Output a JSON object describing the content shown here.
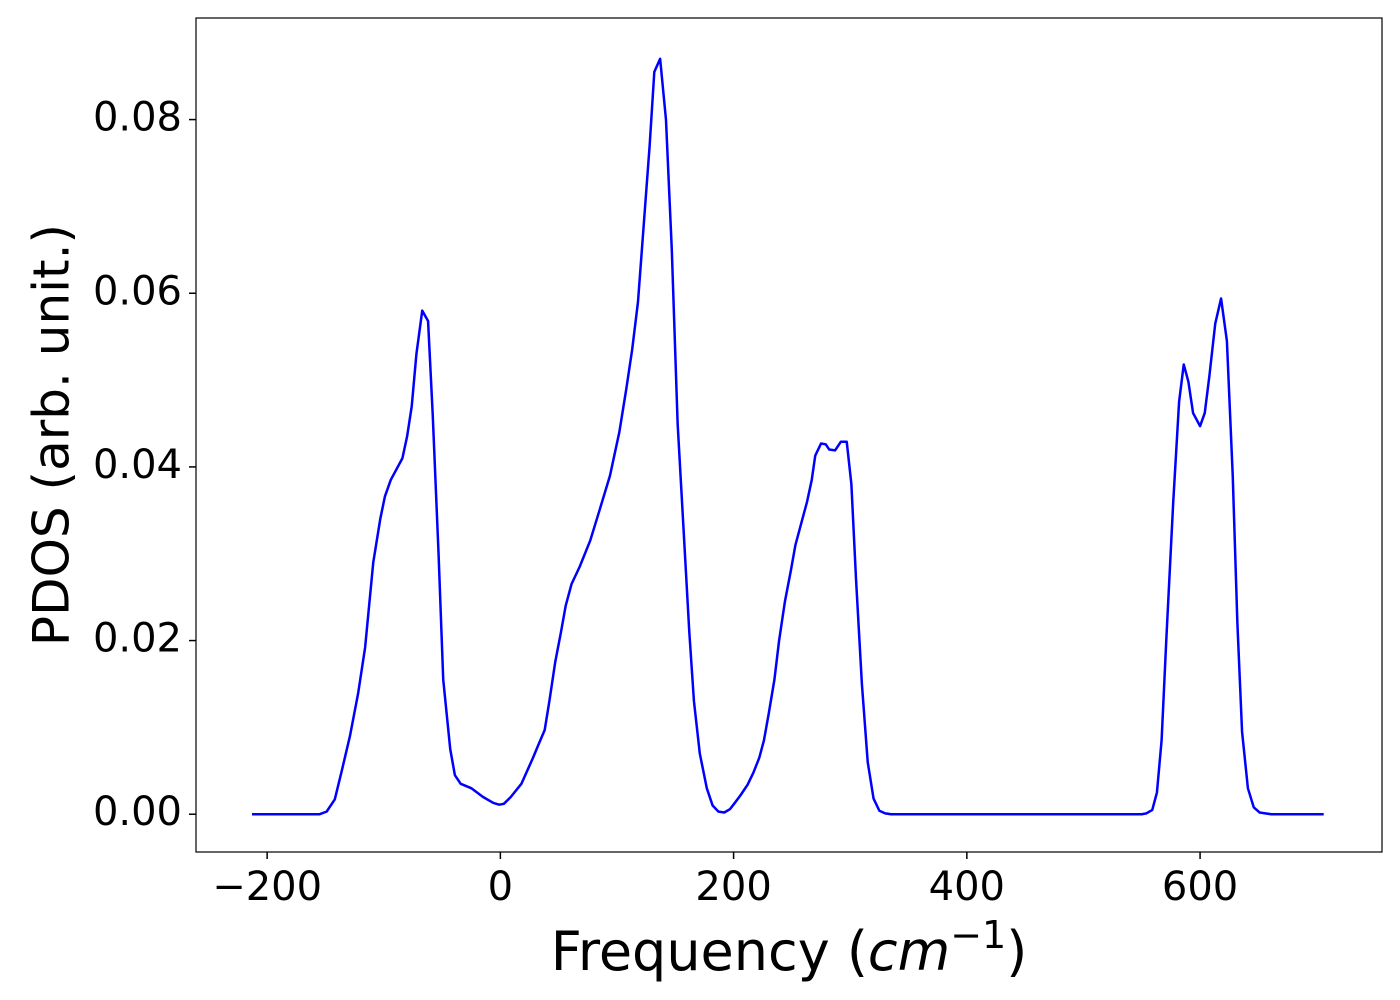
{
  "chart_data": {
    "type": "line",
    "ylabel": "PDOS (arb. unit.)",
    "xlabel": [
      "Frequency (",
      "cm",
      "−1",
      ")"
    ],
    "color": "#0000ff",
    "x": [
      -213,
      -155,
      -149,
      -142,
      -136,
      -129,
      -122,
      -116,
      -109,
      -103,
      -99,
      -94,
      -84,
      -80,
      -76,
      -72,
      -67,
      -62,
      -58,
      -53,
      -49,
      -43,
      -39,
      -34,
      -25,
      -15,
      -6,
      -1,
      3,
      9,
      18,
      23,
      28,
      32,
      38,
      42,
      47,
      52,
      56,
      61,
      68,
      77,
      85,
      94,
      102,
      108,
      113,
      118,
      123,
      128,
      132,
      137,
      142,
      147,
      152,
      157,
      162,
      166,
      171,
      177,
      182,
      187,
      192,
      197,
      201,
      206,
      212,
      217,
      222,
      226,
      230,
      235,
      239,
      244,
      249,
      253,
      258,
      263,
      267,
      270,
      275,
      279,
      282,
      287,
      292,
      297,
      301,
      305,
      310,
      315,
      320,
      325,
      330,
      335,
      550,
      554,
      559,
      563,
      567,
      571,
      577,
      582,
      586,
      590,
      594,
      600,
      604,
      608,
      613,
      618,
      623,
      628,
      632,
      636,
      641,
      646,
      651,
      656,
      661,
      706
    ],
    "values": [
      0,
      0,
      0.0003,
      0.0017,
      0.005,
      0.009,
      0.0139,
      0.0192,
      0.029,
      0.034,
      0.0366,
      0.0385,
      0.041,
      0.0435,
      0.047,
      0.053,
      0.058,
      0.0568,
      0.046,
      0.03,
      0.0155,
      0.0075,
      0.0045,
      0.0035,
      0.003,
      0.002,
      0.0013,
      0.0011,
      0.0012,
      0.002,
      0.0035,
      0.005,
      0.0065,
      0.0078,
      0.0097,
      0.013,
      0.0175,
      0.021,
      0.024,
      0.0265,
      0.0285,
      0.0315,
      0.035,
      0.039,
      0.044,
      0.049,
      0.0535,
      0.059,
      0.068,
      0.077,
      0.0855,
      0.087,
      0.08,
      0.065,
      0.045,
      0.033,
      0.021,
      0.013,
      0.007,
      0.003,
      0.001,
      0.0003,
      0.0002,
      0.0006,
      0.0013,
      0.0022,
      0.0034,
      0.0048,
      0.0065,
      0.0085,
      0.0115,
      0.0155,
      0.02,
      0.0245,
      0.028,
      0.031,
      0.0335,
      0.036,
      0.0385,
      0.0413,
      0.0427,
      0.0426,
      0.042,
      0.0419,
      0.0429,
      0.0429,
      0.038,
      0.027,
      0.015,
      0.006,
      0.0018,
      0.0004,
      0.0001,
      0,
      0,
      0.0001,
      0.0005,
      0.0025,
      0.0085,
      0.02,
      0.036,
      0.0475,
      0.0518,
      0.0498,
      0.0462,
      0.0447,
      0.0462,
      0.0505,
      0.0565,
      0.0594,
      0.0545,
      0.039,
      0.022,
      0.0095,
      0.003,
      0.0008,
      0.0002,
      0.0001,
      0,
      0
    ],
    "xlim": [
      -261,
      756
    ],
    "ylim": [
      -0.00435,
      0.0917
    ],
    "xticks": [
      {
        "value": -200,
        "label": "−200"
      },
      0,
      200,
      400,
      600
    ],
    "yticks": [
      {
        "value": 0,
        "label": "0.00"
      },
      {
        "value": 0.02,
        "label": "0.02"
      },
      {
        "value": 0.04,
        "label": "0.04"
      },
      {
        "value": 0.06,
        "label": "0.06"
      },
      {
        "value": 0.08,
        "label": "0.08"
      }
    ]
  }
}
